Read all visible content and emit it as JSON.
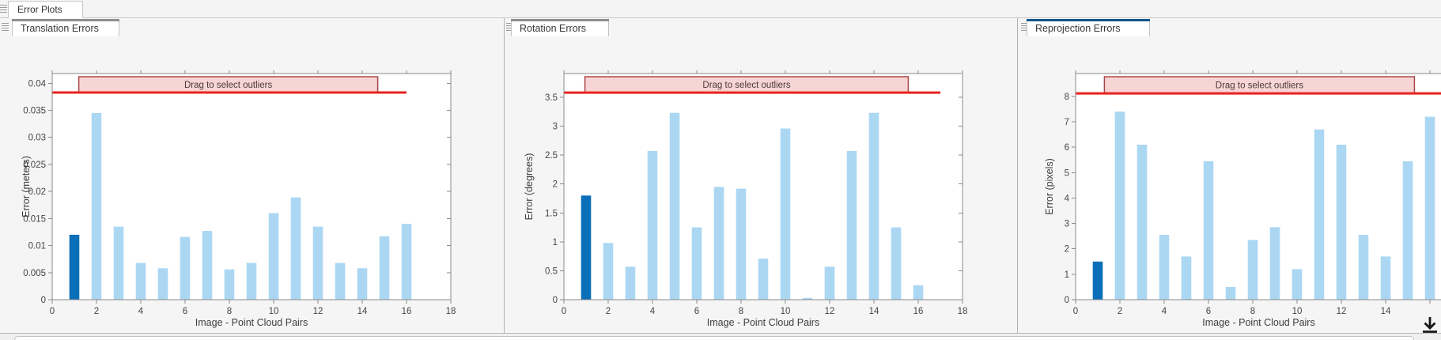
{
  "app": {
    "main_tab_label": "Error Plots"
  },
  "panels": [
    {
      "tab_label": "Translation Errors",
      "selected": false
    },
    {
      "tab_label": "Rotation Errors",
      "selected": false
    },
    {
      "tab_label": "Reprojection Errors",
      "selected": true
    }
  ],
  "colors": {
    "tab_accent_selected": "#10568c",
    "tab_accent_normal": "#8f8f8f",
    "bar_light": "#abd7f3",
    "bar_dark": "#0a6fb8",
    "threshold_red": "#e8231f",
    "banner_fill": "#f6d5d4",
    "banner_border": "#a94747",
    "axis_border": "#8a8a8a",
    "tick_text": "#454545"
  },
  "bottom": {
    "export_icon": "download-arrow"
  },
  "chart_data": [
    {
      "type": "bar",
      "title": "Translation Errors",
      "xlabel": "Image - Point Cloud Pairs",
      "ylabel": "Error (meters)",
      "categories": [
        1,
        2,
        3,
        4,
        5,
        6,
        7,
        8,
        9,
        10,
        11,
        12,
        13,
        14,
        15,
        16
      ],
      "values": [
        0.012,
        0.0345,
        0.0135,
        0.0068,
        0.0058,
        0.0116,
        0.0127,
        0.0056,
        0.0068,
        0.016,
        0.0189,
        0.0135,
        0.0068,
        0.0058,
        0.0117,
        0.014
      ],
      "highlighted_bar": 1,
      "xlim": [
        0,
        18
      ],
      "ylim": [
        0,
        0.0418
      ],
      "xticks": [
        0,
        2,
        4,
        6,
        8,
        10,
        12,
        14,
        16,
        18
      ],
      "xtick_label_max": 18,
      "yticks": [
        0,
        0.005,
        0.01,
        0.015,
        0.02,
        0.025,
        0.03,
        0.035,
        0.04
      ],
      "ytick_labels": [
        "0",
        "0.005",
        "0.01",
        "0.015",
        "0.02",
        "0.025",
        "0.03",
        "0.035",
        "0.04"
      ],
      "grid": false,
      "legend": null,
      "threshold_line": {
        "value": 0.0383,
        "x_start": 0,
        "x_end": 16
      },
      "banner": {
        "label": "Drag to select outliers",
        "x_start": 1.2,
        "x_end": 14.7
      }
    },
    {
      "type": "bar",
      "title": "Rotation Errors",
      "xlabel": "Image - Point Cloud Pairs",
      "ylabel": "Error (degrees)",
      "categories": [
        1,
        2,
        3,
        4,
        5,
        6,
        7,
        8,
        9,
        10,
        11,
        12,
        13,
        14,
        15,
        16
      ],
      "values": [
        1.8,
        0.98,
        0.57,
        2.57,
        3.23,
        1.25,
        1.95,
        1.92,
        0.71,
        2.96,
        0.03,
        0.57,
        2.57,
        3.23,
        1.25,
        0.25
      ],
      "highlighted_bar": 1,
      "xlim": [
        0,
        18
      ],
      "ylim": [
        0,
        3.91
      ],
      "xticks": [
        0,
        2,
        4,
        6,
        8,
        10,
        12,
        14,
        16,
        18
      ],
      "xtick_label_max": 18,
      "yticks": [
        0,
        0.5,
        1,
        1.5,
        2,
        2.5,
        3,
        3.5
      ],
      "ytick_labels": [
        "0",
        "0.5",
        "1",
        "1.5",
        "2",
        "2.5",
        "3",
        "3.5"
      ],
      "grid": false,
      "legend": null,
      "threshold_line": {
        "value": 3.58,
        "x_start": 0,
        "x_end": 17
      },
      "banner": {
        "label": "Drag to select outliers",
        "x_start": 0.95,
        "x_end": 15.55
      }
    },
    {
      "type": "bar",
      "title": "Reprojection Errors",
      "xlabel": "Image - Point Cloud Pairs",
      "ylabel": "Error (pixels)",
      "categories": [
        1,
        2,
        3,
        4,
        5,
        6,
        7,
        8,
        9,
        10,
        11,
        12,
        13,
        14,
        15,
        16
      ],
      "values": [
        1.5,
        7.4,
        6.1,
        2.55,
        1.7,
        5.45,
        0.5,
        2.35,
        2.85,
        1.2,
        6.7,
        6.1,
        2.55,
        1.7,
        5.45,
        7.2
      ],
      "highlighted_bar": 1,
      "xlim": [
        0,
        18
      ],
      "ylim": [
        0,
        8.9
      ],
      "xticks": [
        0,
        2,
        4,
        6,
        8,
        10,
        12,
        14,
        16,
        18
      ],
      "xtick_label_max": 14,
      "yticks": [
        0,
        1,
        2,
        3,
        4,
        5,
        6,
        7,
        8
      ],
      "ytick_labels": [
        "0",
        "1",
        "2",
        "3",
        "4",
        "5",
        "6",
        "7",
        "8"
      ],
      "grid": false,
      "legend": null,
      "threshold_line": {
        "value": 8.12,
        "x_start": 0,
        "x_end": 18
      },
      "banner": {
        "label": "Drag to select outliers",
        "x_start": 1.3,
        "x_end": 15.3
      }
    }
  ]
}
